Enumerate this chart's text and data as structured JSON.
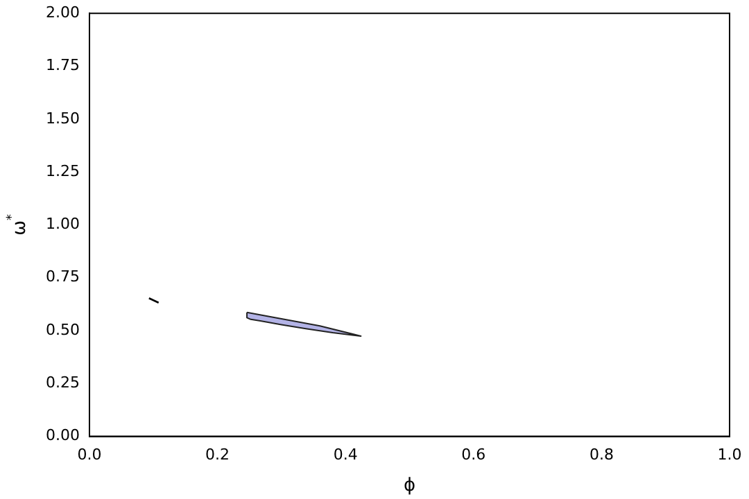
{
  "chart_data": {
    "type": "area",
    "xlabel": "ϕ",
    "ylabel": "ω$^{*}$",
    "series": [
      {
        "type": "area",
        "color": "#b3b3e6",
        "x": [
          0.246,
          0.3,
          0.36,
          0.424,
          0.38,
          0.338,
          0.3,
          0.267,
          0.252,
          0.246,
          0.246
        ],
        "values": [
          0.586,
          0.556,
          0.522,
          0.474,
          0.49,
          0.509,
          0.528,
          0.546,
          0.553,
          0.561,
          0.586
        ]
      },
      {
        "type": "line",
        "color": "#000000",
        "x": [
          0.093,
          0.108
        ],
        "values": [
          0.653,
          0.632
        ]
      }
    ],
    "xlim": [
      0,
      1
    ],
    "ylim": [
      0,
      2
    ],
    "xticks": [
      {
        "value": 0,
        "label": "0.0"
      },
      {
        "value": 0.2,
        "label": "0.2"
      },
      {
        "value": 0.4,
        "label": "0.4"
      },
      {
        "value": 0.6,
        "label": "0.6"
      },
      {
        "value": 0.8,
        "label": "0.8"
      },
      {
        "value": 1,
        "label": "1.0"
      }
    ],
    "yticks": [
      {
        "value": 0,
        "label": "0.00"
      },
      {
        "value": 0.25,
        "label": "0.25"
      },
      {
        "value": 0.5,
        "label": "0.50"
      },
      {
        "value": 0.75,
        "label": "0.75"
      },
      {
        "value": 1,
        "label": "1.00"
      },
      {
        "value": 1.25,
        "label": "1.25"
      },
      {
        "value": 1.5,
        "label": "1.50"
      },
      {
        "value": 1.75,
        "label": "1.75"
      },
      {
        "value": 2,
        "label": "2.00"
      }
    ],
    "grid": false,
    "legend": false,
    "marker": "none"
  }
}
